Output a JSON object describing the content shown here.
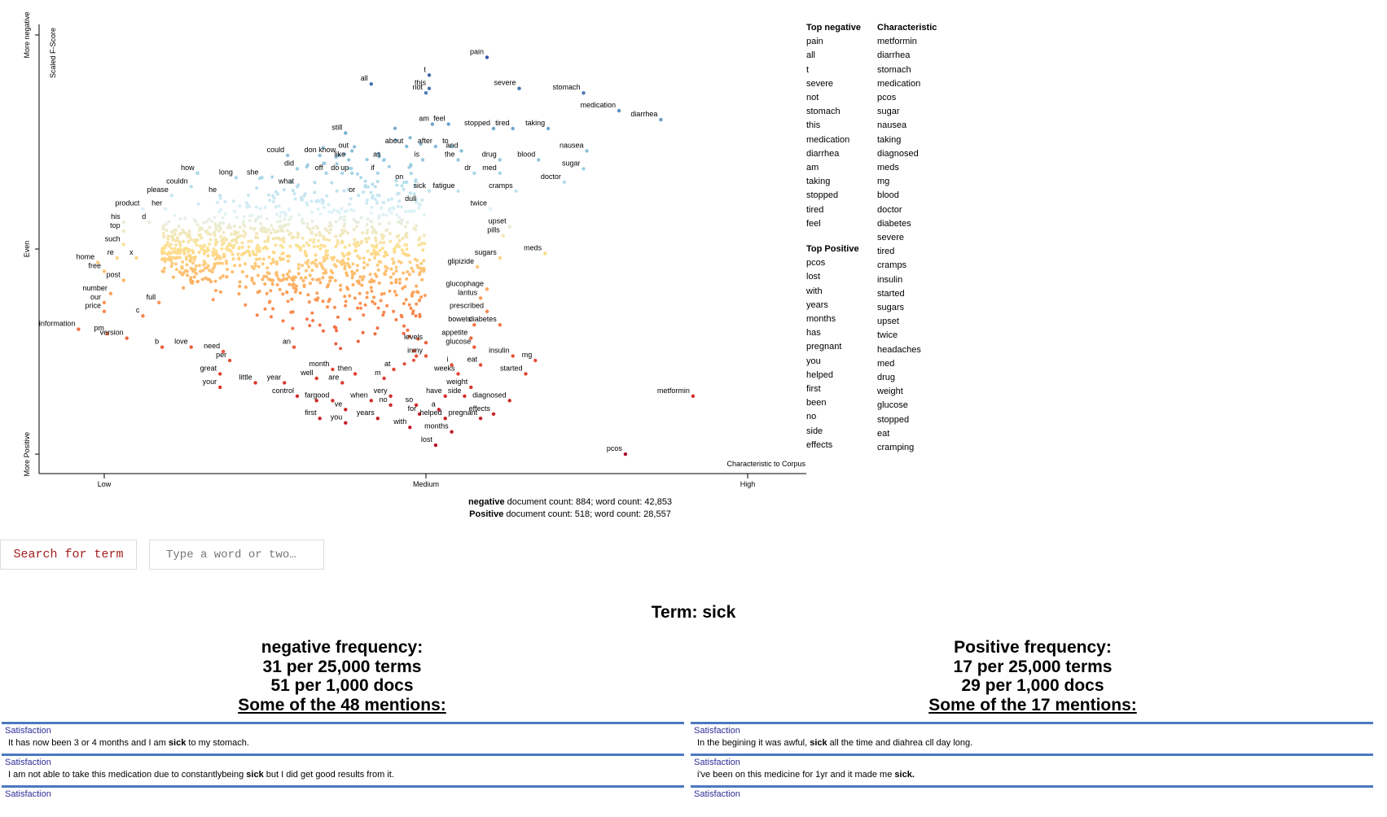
{
  "chart_data": {
    "type": "scatter",
    "y_axis_title": "Scaled F-Score",
    "y_ticks": [
      "More negative",
      "Even",
      "More Positive"
    ],
    "x_axis_title": "Characteristic to Corpus",
    "x_ticks": [
      "Low",
      "Medium",
      "High"
    ],
    "labeled_points": [
      {
        "term": "pain",
        "x": 1.19,
        "y": 0.93
      },
      {
        "term": "severe",
        "x": 1.29,
        "y": 0.86
      },
      {
        "term": "t",
        "x": 1.01,
        "y": 0.89
      },
      {
        "term": "all",
        "x": 0.83,
        "y": 0.87
      },
      {
        "term": "not",
        "x": 1.0,
        "y": 0.85
      },
      {
        "term": "this",
        "x": 1.01,
        "y": 0.86
      },
      {
        "term": "stomach",
        "x": 1.49,
        "y": 0.85
      },
      {
        "term": "medication",
        "x": 1.6,
        "y": 0.81
      },
      {
        "term": "diarrhea",
        "x": 1.73,
        "y": 0.79
      },
      {
        "term": "am",
        "x": 1.02,
        "y": 0.78
      },
      {
        "term": "feel",
        "x": 1.07,
        "y": 0.78
      },
      {
        "term": "stopped",
        "x": 1.21,
        "y": 0.77
      },
      {
        "term": "tired",
        "x": 1.27,
        "y": 0.77
      },
      {
        "term": "taking",
        "x": 1.38,
        "y": 0.77
      },
      {
        "term": "still",
        "x": 0.75,
        "y": 0.76
      },
      {
        "term": "nausea",
        "x": 1.5,
        "y": 0.72
      },
      {
        "term": "about",
        "x": 0.94,
        "y": 0.73
      },
      {
        "term": "after",
        "x": 1.03,
        "y": 0.73
      },
      {
        "term": "to",
        "x": 1.08,
        "y": 0.73
      },
      {
        "term": "and",
        "x": 1.11,
        "y": 0.72
      },
      {
        "term": "could",
        "x": 0.57,
        "y": 0.71
      },
      {
        "term": "don",
        "x": 0.67,
        "y": 0.71
      },
      {
        "term": "know",
        "x": 0.73,
        "y": 0.71
      },
      {
        "term": "out",
        "x": 0.77,
        "y": 0.72
      },
      {
        "term": "like",
        "x": 0.76,
        "y": 0.7
      },
      {
        "term": "as",
        "x": 0.87,
        "y": 0.7
      },
      {
        "term": "is",
        "x": 0.99,
        "y": 0.7
      },
      {
        "term": "the",
        "x": 1.1,
        "y": 0.7
      },
      {
        "term": "drug",
        "x": 1.23,
        "y": 0.7
      },
      {
        "term": "blood",
        "x": 1.35,
        "y": 0.7
      },
      {
        "term": "did",
        "x": 0.6,
        "y": 0.68
      },
      {
        "term": "how",
        "x": 0.29,
        "y": 0.67
      },
      {
        "term": "off",
        "x": 0.69,
        "y": 0.67
      },
      {
        "term": "do",
        "x": 0.74,
        "y": 0.67
      },
      {
        "term": "up",
        "x": 0.77,
        "y": 0.67
      },
      {
        "term": "if",
        "x": 0.85,
        "y": 0.67
      },
      {
        "term": "dr",
        "x": 1.15,
        "y": 0.67
      },
      {
        "term": "med",
        "x": 1.23,
        "y": 0.67
      },
      {
        "term": "sugar",
        "x": 1.49,
        "y": 0.68
      },
      {
        "term": "long",
        "x": 0.41,
        "y": 0.66
      },
      {
        "term": "she",
        "x": 0.49,
        "y": 0.66
      },
      {
        "term": "on",
        "x": 0.94,
        "y": 0.65
      },
      {
        "term": "doctor",
        "x": 1.43,
        "y": 0.65
      },
      {
        "term": "couldn",
        "x": 0.27,
        "y": 0.64
      },
      {
        "term": "what",
        "x": 0.6,
        "y": 0.64
      },
      {
        "term": "sick",
        "x": 1.01,
        "y": 0.63
      },
      {
        "term": "fatigue",
        "x": 1.1,
        "y": 0.63
      },
      {
        "term": "cramps",
        "x": 1.28,
        "y": 0.63
      },
      {
        "term": "he",
        "x": 0.36,
        "y": 0.62
      },
      {
        "term": "or",
        "x": 0.79,
        "y": 0.62
      },
      {
        "term": "please",
        "x": 0.21,
        "y": 0.62
      },
      {
        "term": "dull",
        "x": 0.98,
        "y": 0.6
      },
      {
        "term": "twice",
        "x": 1.2,
        "y": 0.59
      },
      {
        "term": "product",
        "x": 0.12,
        "y": 0.59
      },
      {
        "term": "her",
        "x": 0.19,
        "y": 0.59
      },
      {
        "term": "his",
        "x": 0.06,
        "y": 0.56
      },
      {
        "term": "d",
        "x": 0.14,
        "y": 0.56
      },
      {
        "term": "top",
        "x": 0.06,
        "y": 0.54
      },
      {
        "term": "upset",
        "x": 1.26,
        "y": 0.55
      },
      {
        "term": "pills",
        "x": 1.24,
        "y": 0.53
      },
      {
        "term": "such",
        "x": 0.06,
        "y": 0.51
      },
      {
        "term": "re",
        "x": 0.04,
        "y": 0.48
      },
      {
        "term": "x",
        "x": 0.1,
        "y": 0.48
      },
      {
        "term": "sugars",
        "x": 1.23,
        "y": 0.48
      },
      {
        "term": "meds",
        "x": 1.37,
        "y": 0.49
      },
      {
        "term": "home",
        "x": -0.02,
        "y": 0.47
      },
      {
        "term": "glipizide",
        "x": 1.16,
        "y": 0.46
      },
      {
        "term": "free",
        "x": 0.0,
        "y": 0.45
      },
      {
        "term": "post",
        "x": 0.06,
        "y": 0.43
      },
      {
        "term": "glucophage",
        "x": 1.19,
        "y": 0.41
      },
      {
        "term": "lantus",
        "x": 1.17,
        "y": 0.39
      },
      {
        "term": "number",
        "x": 0.02,
        "y": 0.4
      },
      {
        "term": "our",
        "x": 0.0,
        "y": 0.38
      },
      {
        "term": "full",
        "x": 0.17,
        "y": 0.38
      },
      {
        "term": "price",
        "x": 0.0,
        "y": 0.36
      },
      {
        "term": "c",
        "x": 0.12,
        "y": 0.35
      },
      {
        "term": "prescribed",
        "x": 1.19,
        "y": 0.36
      },
      {
        "term": "bowels",
        "x": 1.15,
        "y": 0.33
      },
      {
        "term": "diabetes",
        "x": 1.23,
        "y": 0.33
      },
      {
        "term": "information",
        "x": -0.08,
        "y": 0.32
      },
      {
        "term": "pm",
        "x": 0.01,
        "y": 0.31
      },
      {
        "term": "appetite",
        "x": 1.14,
        "y": 0.3
      },
      {
        "term": "version",
        "x": 0.07,
        "y": 0.3
      },
      {
        "term": "levels",
        "x": 1.0,
        "y": 0.29
      },
      {
        "term": "glucose",
        "x": 1.15,
        "y": 0.28
      },
      {
        "term": "b",
        "x": 0.18,
        "y": 0.28
      },
      {
        "term": "love",
        "x": 0.27,
        "y": 0.28
      },
      {
        "term": "an",
        "x": 0.59,
        "y": 0.28
      },
      {
        "term": "insulin",
        "x": 1.27,
        "y": 0.26
      },
      {
        "term": "mg",
        "x": 1.34,
        "y": 0.25
      },
      {
        "term": "need",
        "x": 0.37,
        "y": 0.27
      },
      {
        "term": "per",
        "x": 0.39,
        "y": 0.25
      },
      {
        "term": "in",
        "x": 0.97,
        "y": 0.26
      },
      {
        "term": "my",
        "x": 1.0,
        "y": 0.26
      },
      {
        "term": "at",
        "x": 0.9,
        "y": 0.23
      },
      {
        "term": "i",
        "x": 1.08,
        "y": 0.24
      },
      {
        "term": "eat",
        "x": 1.17,
        "y": 0.24
      },
      {
        "term": "month",
        "x": 0.71,
        "y": 0.23
      },
      {
        "term": "then",
        "x": 0.78,
        "y": 0.22
      },
      {
        "term": "great",
        "x": 0.36,
        "y": 0.22
      },
      {
        "term": "weeks",
        "x": 1.1,
        "y": 0.22
      },
      {
        "term": "started",
        "x": 1.31,
        "y": 0.22
      },
      {
        "term": "well",
        "x": 0.66,
        "y": 0.21
      },
      {
        "term": "m",
        "x": 0.87,
        "y": 0.21
      },
      {
        "term": "are",
        "x": 0.74,
        "y": 0.2
      },
      {
        "term": "little",
        "x": 0.47,
        "y": 0.2
      },
      {
        "term": "year",
        "x": 0.56,
        "y": 0.2
      },
      {
        "term": "your",
        "x": 0.36,
        "y": 0.19
      },
      {
        "term": "weight",
        "x": 1.14,
        "y": 0.19
      },
      {
        "term": "control",
        "x": 0.6,
        "y": 0.17
      },
      {
        "term": "very",
        "x": 0.89,
        "y": 0.17
      },
      {
        "term": "have",
        "x": 1.06,
        "y": 0.17
      },
      {
        "term": "side",
        "x": 1.12,
        "y": 0.17
      },
      {
        "term": "metformin",
        "x": 1.83,
        "y": 0.17
      },
      {
        "term": "far",
        "x": 0.66,
        "y": 0.16
      },
      {
        "term": "good",
        "x": 0.71,
        "y": 0.16
      },
      {
        "term": "when",
        "x": 0.83,
        "y": 0.16
      },
      {
        "term": "no",
        "x": 0.89,
        "y": 0.15
      },
      {
        "term": "so",
        "x": 0.97,
        "y": 0.15
      },
      {
        "term": "diagnosed",
        "x": 1.26,
        "y": 0.16
      },
      {
        "term": "ve",
        "x": 0.75,
        "y": 0.14
      },
      {
        "term": "a",
        "x": 1.04,
        "y": 0.14
      },
      {
        "term": "effects",
        "x": 1.21,
        "y": 0.13
      },
      {
        "term": "for",
        "x": 0.98,
        "y": 0.13
      },
      {
        "term": "first",
        "x": 0.67,
        "y": 0.12
      },
      {
        "term": "you",
        "x": 0.75,
        "y": 0.11
      },
      {
        "term": "years",
        "x": 0.85,
        "y": 0.12
      },
      {
        "term": "helped",
        "x": 1.06,
        "y": 0.12
      },
      {
        "term": "pregnant",
        "x": 1.17,
        "y": 0.12
      },
      {
        "term": "with",
        "x": 0.95,
        "y": 0.1
      },
      {
        "term": "months",
        "x": 1.08,
        "y": 0.09
      },
      {
        "term": "lost",
        "x": 1.03,
        "y": 0.06
      },
      {
        "term": "pcos",
        "x": 1.62,
        "y": 0.04
      }
    ]
  },
  "lists": {
    "neg_header": "Top negative",
    "neg_terms": [
      "pain",
      "all",
      "t",
      "severe",
      "not",
      "stomach",
      "this",
      "medication",
      "diarrhea",
      "am",
      "taking",
      "stopped",
      "tired",
      "feel"
    ],
    "pos_header": "Top Positive",
    "pos_terms": [
      "pcos",
      "lost",
      "with",
      "years",
      "months",
      "has",
      "pregnant",
      "you",
      "helped",
      "first",
      "been",
      "no",
      "side",
      "effects"
    ],
    "char_header": "Characteristic",
    "char_terms": [
      "metformin",
      "diarrhea",
      "stomach",
      "medication",
      "pcos",
      "sugar",
      "nausea",
      "taking",
      "diagnosed",
      "meds",
      "mg",
      "blood",
      "doctor",
      "diabetes",
      "severe",
      "tired",
      "cramps",
      "insulin",
      "started",
      "sugars",
      "upset",
      "twice",
      "headaches",
      "med",
      "drug",
      "weight",
      "glucose",
      "stopped",
      "eat",
      "cramping"
    ]
  },
  "counts": {
    "neg_label": "negative",
    "neg_text": " document count: 884; word count: 42,853",
    "pos_label": "Positive",
    "pos_text": " document count: 518; word count: 28,557"
  },
  "search": {
    "button_label": "Search for term",
    "placeholder": "Type a word or two…"
  },
  "term": {
    "title": "Term: sick",
    "neg": {
      "heading": "negative frequency:",
      "per_terms": "31 per 25,000 terms",
      "per_docs": "51 per 1,000 docs",
      "mentions": "Some of the 48 mentions:"
    },
    "pos": {
      "heading": "Positive frequency:",
      "per_terms": "17 per 25,000 terms",
      "per_docs": "29 per 1,000 docs",
      "mentions": "Some of the 17 mentions:"
    }
  },
  "snippets": {
    "neg": [
      {
        "category": "Satisfaction",
        "before": "It has now been 3 or 4 months and I am ",
        "term": "sick",
        "after": " to my stomach."
      },
      {
        "category": "Satisfaction",
        "before": "I am not able to take this medication due to constantlybeing ",
        "term": "sick",
        "after": " but I did get good results from it."
      },
      {
        "category": "Satisfaction",
        "before": "",
        "term": "",
        "after": ""
      }
    ],
    "pos": [
      {
        "category": "Satisfaction",
        "before": "In the begining it was awful, ",
        "term": "sick",
        "after": " all the time and diahrea cll day long."
      },
      {
        "category": "Satisfaction",
        "before": "i've been on this medicine for 1yr and it made me ",
        "term": "sick.",
        "after": ""
      },
      {
        "category": "Satisfaction",
        "before": "",
        "term": "",
        "after": ""
      }
    ]
  }
}
